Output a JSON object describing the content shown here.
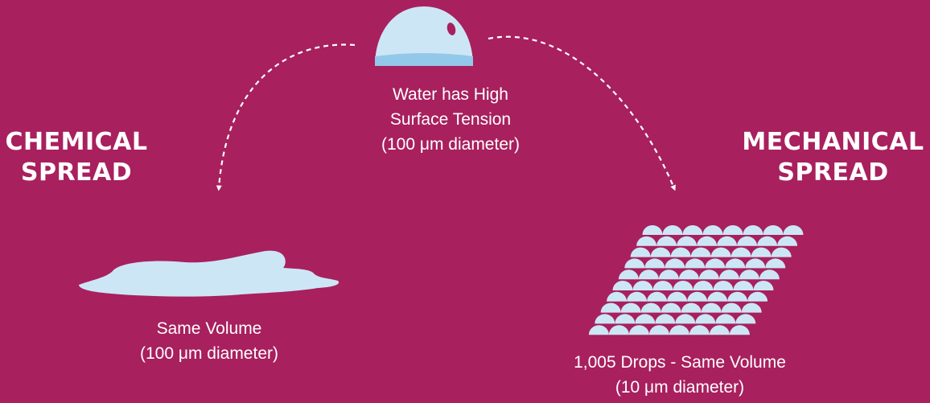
{
  "background_color": "#a8205e",
  "water_color": "#cde6f5",
  "water_shade_color": "#93c8ea",
  "arrow_style": "white dashed curved arrow",
  "headings": {
    "chemical": [
      "CHEMICAL",
      "SPREAD"
    ],
    "mechanical": [
      "MECHANICAL",
      "SPREAD"
    ]
  },
  "captions": {
    "top": [
      "Water has High",
      "Surface Tension",
      "(100 μm diameter)"
    ],
    "left": [
      "Same Volume",
      "(100 μm diameter)"
    ],
    "right": [
      "1,005 Drops - Same Volume",
      "(10 μm diameter)"
    ]
  }
}
